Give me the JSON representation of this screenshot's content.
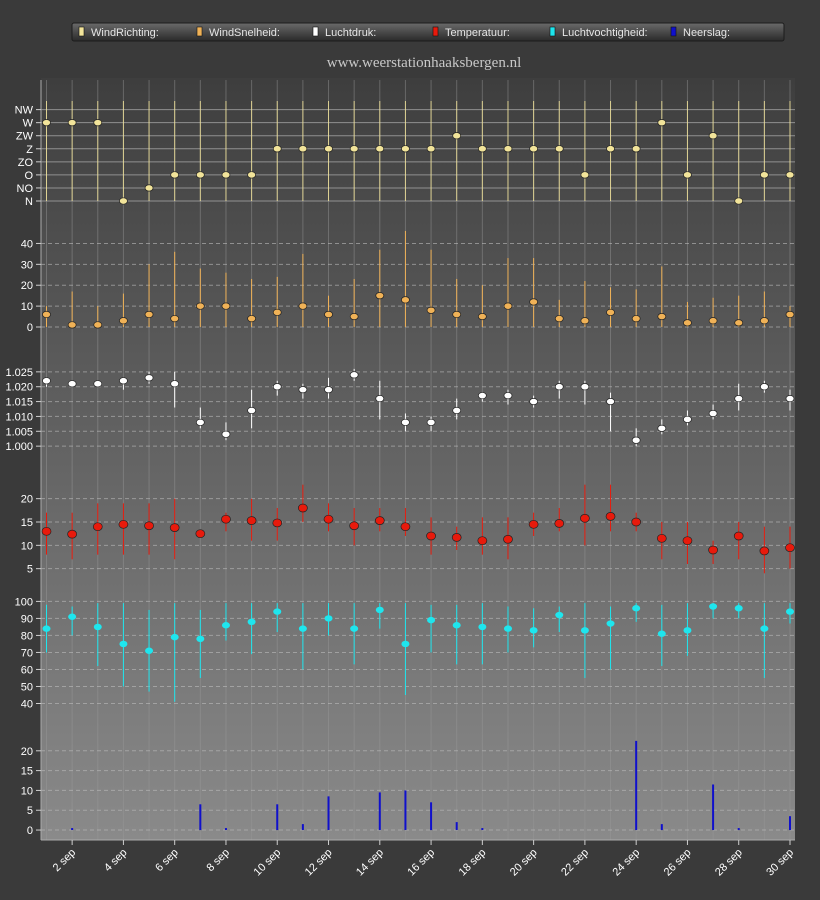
{
  "site_url": "www.weerstationhaaksbergen.nl",
  "legend": [
    {
      "label": "WindRichting:",
      "color": "#f2e49a"
    },
    {
      "label": "WindSnelheid:",
      "color": "#f0b257"
    },
    {
      "label": "Luchtdruk:",
      "color": "#ffffff"
    },
    {
      "label": "Temperatuur:",
      "color": "#e81a0c"
    },
    {
      "label": "Luchtvochtigheid:",
      "color": "#1ee6ee"
    },
    {
      "label": "Neerslag:",
      "color": "#1010cc"
    }
  ],
  "chart_data": [
    {
      "type": "scatter",
      "name": "WindRichting",
      "y_categories": [
        "N",
        "NO",
        "O",
        "ZO",
        "Z",
        "ZW",
        "W",
        "NW"
      ],
      "y_ticks": [
        "N",
        "NO",
        "O",
        "ZO",
        "Z",
        "ZW",
        "W",
        "NW"
      ],
      "days": [
        1,
        2,
        3,
        4,
        5,
        6,
        7,
        8,
        9,
        10,
        11,
        12,
        13,
        14,
        15,
        16,
        17,
        18,
        19,
        20,
        21,
        22,
        23,
        24,
        25,
        26,
        27,
        28,
        29,
        30
      ],
      "values": [
        "W",
        "W",
        "W",
        "N",
        "NO",
        "O",
        "O",
        "O",
        "O",
        "Z",
        "Z",
        "Z",
        "Z",
        "Z",
        "Z",
        "Z",
        "ZW",
        "Z",
        "Z",
        "Z",
        "Z",
        "O",
        "Z",
        "Z",
        "W",
        "O",
        "ZW",
        "N",
        "O",
        "O"
      ],
      "color": "#f2e49a"
    },
    {
      "type": "scatter",
      "name": "WindSnelheid",
      "ylim": [
        0,
        45
      ],
      "y_ticks": [
        0,
        10,
        20,
        30,
        40
      ],
      "days": [
        1,
        2,
        3,
        4,
        5,
        6,
        7,
        8,
        9,
        10,
        11,
        12,
        13,
        14,
        15,
        16,
        17,
        18,
        19,
        20,
        21,
        22,
        23,
        24,
        25,
        26,
        27,
        28,
        29,
        30
      ],
      "values": [
        6,
        1,
        1,
        3,
        6,
        4,
        10,
        10,
        4,
        7,
        10,
        6,
        5,
        15,
        13,
        8,
        6,
        5,
        10,
        12,
        4,
        3,
        7,
        4,
        5,
        2,
        3,
        2,
        3,
        6
      ],
      "high": [
        10,
        17,
        10,
        16,
        30,
        36,
        28,
        26,
        23,
        24,
        35,
        15,
        23,
        37,
        46,
        37,
        23,
        20,
        33,
        33,
        13,
        22,
        19,
        18,
        29,
        12,
        14,
        15,
        17,
        10
      ],
      "low": [
        0,
        0,
        0,
        0,
        0,
        0,
        0,
        0,
        0,
        0,
        0,
        0,
        0,
        0,
        0,
        0,
        0,
        0,
        0,
        0,
        0,
        0,
        0,
        0,
        0,
        0,
        0,
        0,
        0,
        0
      ],
      "color": "#f0b257"
    },
    {
      "type": "scatter",
      "name": "Luchtdruk",
      "ylim": [
        0.995,
        1.03
      ],
      "y_ticks": [
        "1.000",
        "1.005",
        "1.010",
        "1.015",
        "1.020",
        "1.025"
      ],
      "days": [
        1,
        2,
        3,
        4,
        5,
        6,
        7,
        8,
        9,
        10,
        11,
        12,
        13,
        14,
        15,
        16,
        17,
        18,
        19,
        20,
        21,
        22,
        23,
        24,
        25,
        26,
        27,
        28,
        29,
        30
      ],
      "values": [
        1.022,
        1.021,
        1.021,
        1.022,
        1.023,
        1.021,
        1.008,
        1.004,
        1.012,
        1.02,
        1.019,
        1.019,
        1.024,
        1.016,
        1.008,
        1.008,
        1.012,
        1.017,
        1.017,
        1.015,
        1.02,
        1.02,
        1.015,
        1.002,
        1.006,
        1.009,
        1.011,
        1.016,
        1.02,
        1.016
      ],
      "high": [
        1.023,
        1.022,
        1.022,
        1.023,
        1.025,
        1.025,
        1.013,
        1.008,
        1.019,
        1.022,
        1.021,
        1.023,
        1.026,
        1.022,
        1.011,
        1.01,
        1.016,
        1.018,
        1.019,
        1.017,
        1.022,
        1.022,
        1.018,
        1.006,
        1.009,
        1.012,
        1.014,
        1.021,
        1.022,
        1.019
      ],
      "low": [
        1.02,
        1.02,
        1.02,
        1.019,
        1.021,
        1.013,
        1.006,
        1.002,
        1.006,
        1.017,
        1.016,
        1.016,
        1.022,
        1.009,
        1.005,
        1.005,
        1.009,
        1.015,
        1.014,
        1.013,
        1.016,
        1.014,
        1.005,
        1.0,
        1.004,
        1.007,
        1.009,
        1.012,
        1.018,
        1.012
      ],
      "color": "#ffffff"
    },
    {
      "type": "scatter",
      "name": "Temperatuur",
      "ylim": [
        3,
        24
      ],
      "y_ticks": [
        5,
        10,
        15,
        20
      ],
      "days": [
        1,
        2,
        3,
        4,
        5,
        6,
        7,
        8,
        9,
        10,
        11,
        12,
        13,
        14,
        15,
        16,
        17,
        18,
        19,
        20,
        21,
        22,
        23,
        24,
        25,
        26,
        27,
        28,
        29,
        30
      ],
      "values": [
        13,
        12.4,
        14,
        14.5,
        14.2,
        13.8,
        12.5,
        15.6,
        15.3,
        14.8,
        18,
        15.6,
        14.2,
        15.3,
        14,
        12,
        11.7,
        11,
        11.3,
        14.5,
        14.7,
        15.8,
        16.2,
        15,
        11.5,
        11,
        9,
        12,
        8.8,
        9.5
      ],
      "high": [
        17,
        17,
        19,
        19,
        19,
        20,
        13,
        17,
        20,
        18,
        23,
        19,
        18,
        18,
        18,
        16,
        14,
        16,
        16,
        17,
        18,
        23,
        23,
        17,
        15,
        15,
        11,
        15,
        14,
        14
      ],
      "low": [
        8,
        7,
        8,
        8,
        8,
        7,
        12,
        13,
        11,
        11,
        15,
        13,
        10,
        13,
        12,
        8,
        9,
        8,
        7,
        12,
        13,
        10,
        13,
        13,
        7,
        6,
        6,
        7,
        4,
        5
      ],
      "color": "#e81a0c"
    },
    {
      "type": "scatter",
      "name": "Luchtvochtigheid",
      "ylim": [
        35,
        102
      ],
      "y_ticks": [
        40,
        50,
        60,
        70,
        80,
        90,
        100
      ],
      "days": [
        1,
        2,
        3,
        4,
        5,
        6,
        7,
        8,
        9,
        10,
        11,
        12,
        13,
        14,
        15,
        16,
        17,
        18,
        19,
        20,
        21,
        22,
        23,
        24,
        25,
        26,
        27,
        28,
        29,
        30
      ],
      "values": [
        84,
        91,
        85,
        75,
        71,
        79,
        78,
        86,
        88,
        94,
        84,
        90,
        84,
        95,
        75,
        89,
        86,
        85,
        84,
        83,
        92,
        83,
        87,
        96,
        81,
        83,
        97,
        96,
        84,
        94
      ],
      "high": [
        98,
        97,
        99,
        99,
        95,
        99,
        95,
        99,
        99,
        99,
        99,
        99,
        99,
        99,
        99,
        98,
        98,
        99,
        97,
        96,
        97,
        99,
        97,
        99,
        98,
        99,
        99,
        99,
        99,
        99
      ],
      "low": [
        70,
        80,
        62,
        50,
        47,
        41,
        55,
        77,
        69,
        82,
        60,
        80,
        63,
        84,
        45,
        70,
        63,
        63,
        70,
        73,
        82,
        55,
        60,
        88,
        62,
        68,
        90,
        90,
        55,
        87
      ],
      "color": "#1ee6ee"
    },
    {
      "type": "bar",
      "name": "Neerslag",
      "ylim": [
        -1,
        25
      ],
      "y_ticks": [
        0,
        5,
        10,
        15,
        20
      ],
      "days": [
        1,
        2,
        3,
        4,
        5,
        6,
        7,
        8,
        9,
        10,
        11,
        12,
        13,
        14,
        15,
        16,
        17,
        18,
        19,
        20,
        21,
        22,
        23,
        24,
        25,
        26,
        27,
        28,
        29,
        30
      ],
      "values": [
        0,
        0.5,
        0,
        0,
        0,
        0,
        6.5,
        0.5,
        0,
        6.5,
        1.5,
        8.5,
        0,
        9.5,
        10,
        7,
        2,
        0.5,
        0,
        0,
        0,
        0,
        0,
        22.5,
        1.5,
        0,
        11.5,
        0.5,
        0,
        3.5
      ],
      "color": "#1010cc"
    }
  ],
  "x_axis": {
    "tick_days": [
      2,
      4,
      6,
      8,
      10,
      12,
      14,
      16,
      18,
      20,
      22,
      24,
      26,
      28,
      30
    ],
    "tick_labels": [
      "2 sep",
      "4 sep",
      "6 sep",
      "8 sep",
      "10 sep",
      "12 sep",
      "14 sep",
      "16 sep",
      "18 sep",
      "20 sep",
      "22 sep",
      "24 sep",
      "26 sep",
      "28 sep",
      "30 sep"
    ]
  }
}
